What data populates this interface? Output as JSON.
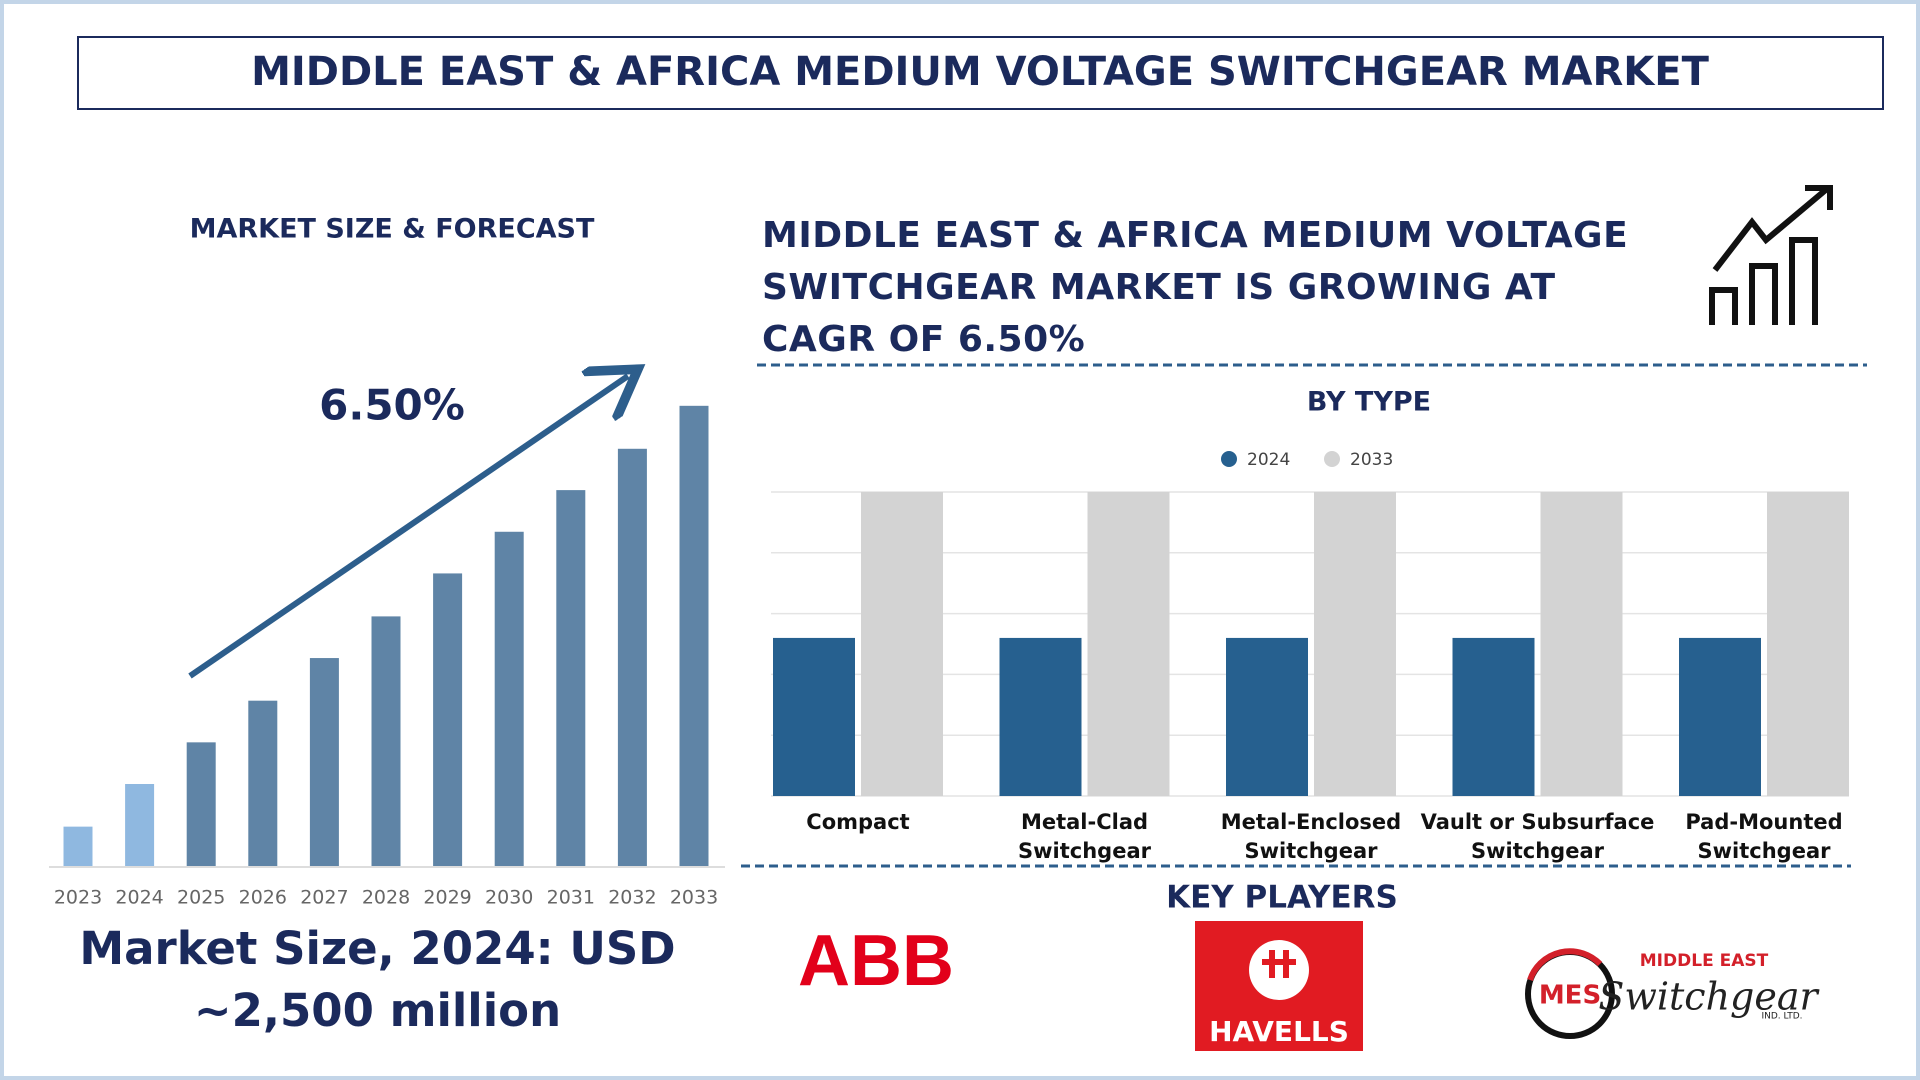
{
  "title": "MIDDLE EAST & AFRICA MEDIUM VOLTAGE SWITCHGEAR MARKET",
  "chart_data": [
    {
      "type": "bar",
      "title": "MARKET SIZE & FORECAST",
      "categories": [
        "2023",
        "2024",
        "2025",
        "2026",
        "2027",
        "2028",
        "2029",
        "2030",
        "2031",
        "2032",
        "2033"
      ],
      "values": [
        1200,
        2500,
        3770,
        5040,
        6340,
        7610,
        8920,
        10190,
        11460,
        12720,
        14030
      ],
      "colors": [
        "#8fb8e0",
        "#8fb8e0",
        "#5f84a6",
        "#5f84a6",
        "#5f84a6",
        "#5f84a6",
        "#5f84a6",
        "#5f84a6",
        "#5f84a6",
        "#5f84a6",
        "#5f84a6"
      ],
      "ylim": [
        0,
        15000
      ],
      "annotation": "6.50%",
      "footer": "Market Size, 2024: USD\n~2,500 million"
    },
    {
      "type": "bar",
      "headline": "MIDDLE EAST & AFRICA MEDIUM VOLTAGE\nSWITCHGEAR MARKET IS GROWING AT\nCAGR OF 6.50%",
      "title": "BY TYPE",
      "categories": [
        "Compact",
        "Metal-Clad\nSwitchgear",
        "Metal-Enclosed\nSwitchgear",
        "Vault or Subsurface\nSwitchgear",
        "Pad-Mounted\nSwitchgear"
      ],
      "series": [
        {
          "name": "2024",
          "color": "#26608f",
          "values": [
            2.6,
            2.6,
            2.6,
            2.6,
            2.6
          ]
        },
        {
          "name": "2033",
          "color": "#d3d3d3",
          "values": [
            5,
            5,
            5,
            5,
            5
          ]
        }
      ],
      "ylim": [
        0,
        5
      ],
      "yticks": [
        0,
        1,
        2,
        3,
        4,
        5
      ],
      "grid": true,
      "tick_labels": false,
      "legend": "top"
    }
  ],
  "key_players": {
    "title": "KEY PLAYERS",
    "logos": [
      {
        "name": "ABB"
      },
      {
        "name": "HAVELLS"
      },
      {
        "badge": "MES",
        "top": "MIDDLE EAST",
        "script": "Switchgear",
        "suffix": "IND. LTD."
      }
    ]
  }
}
